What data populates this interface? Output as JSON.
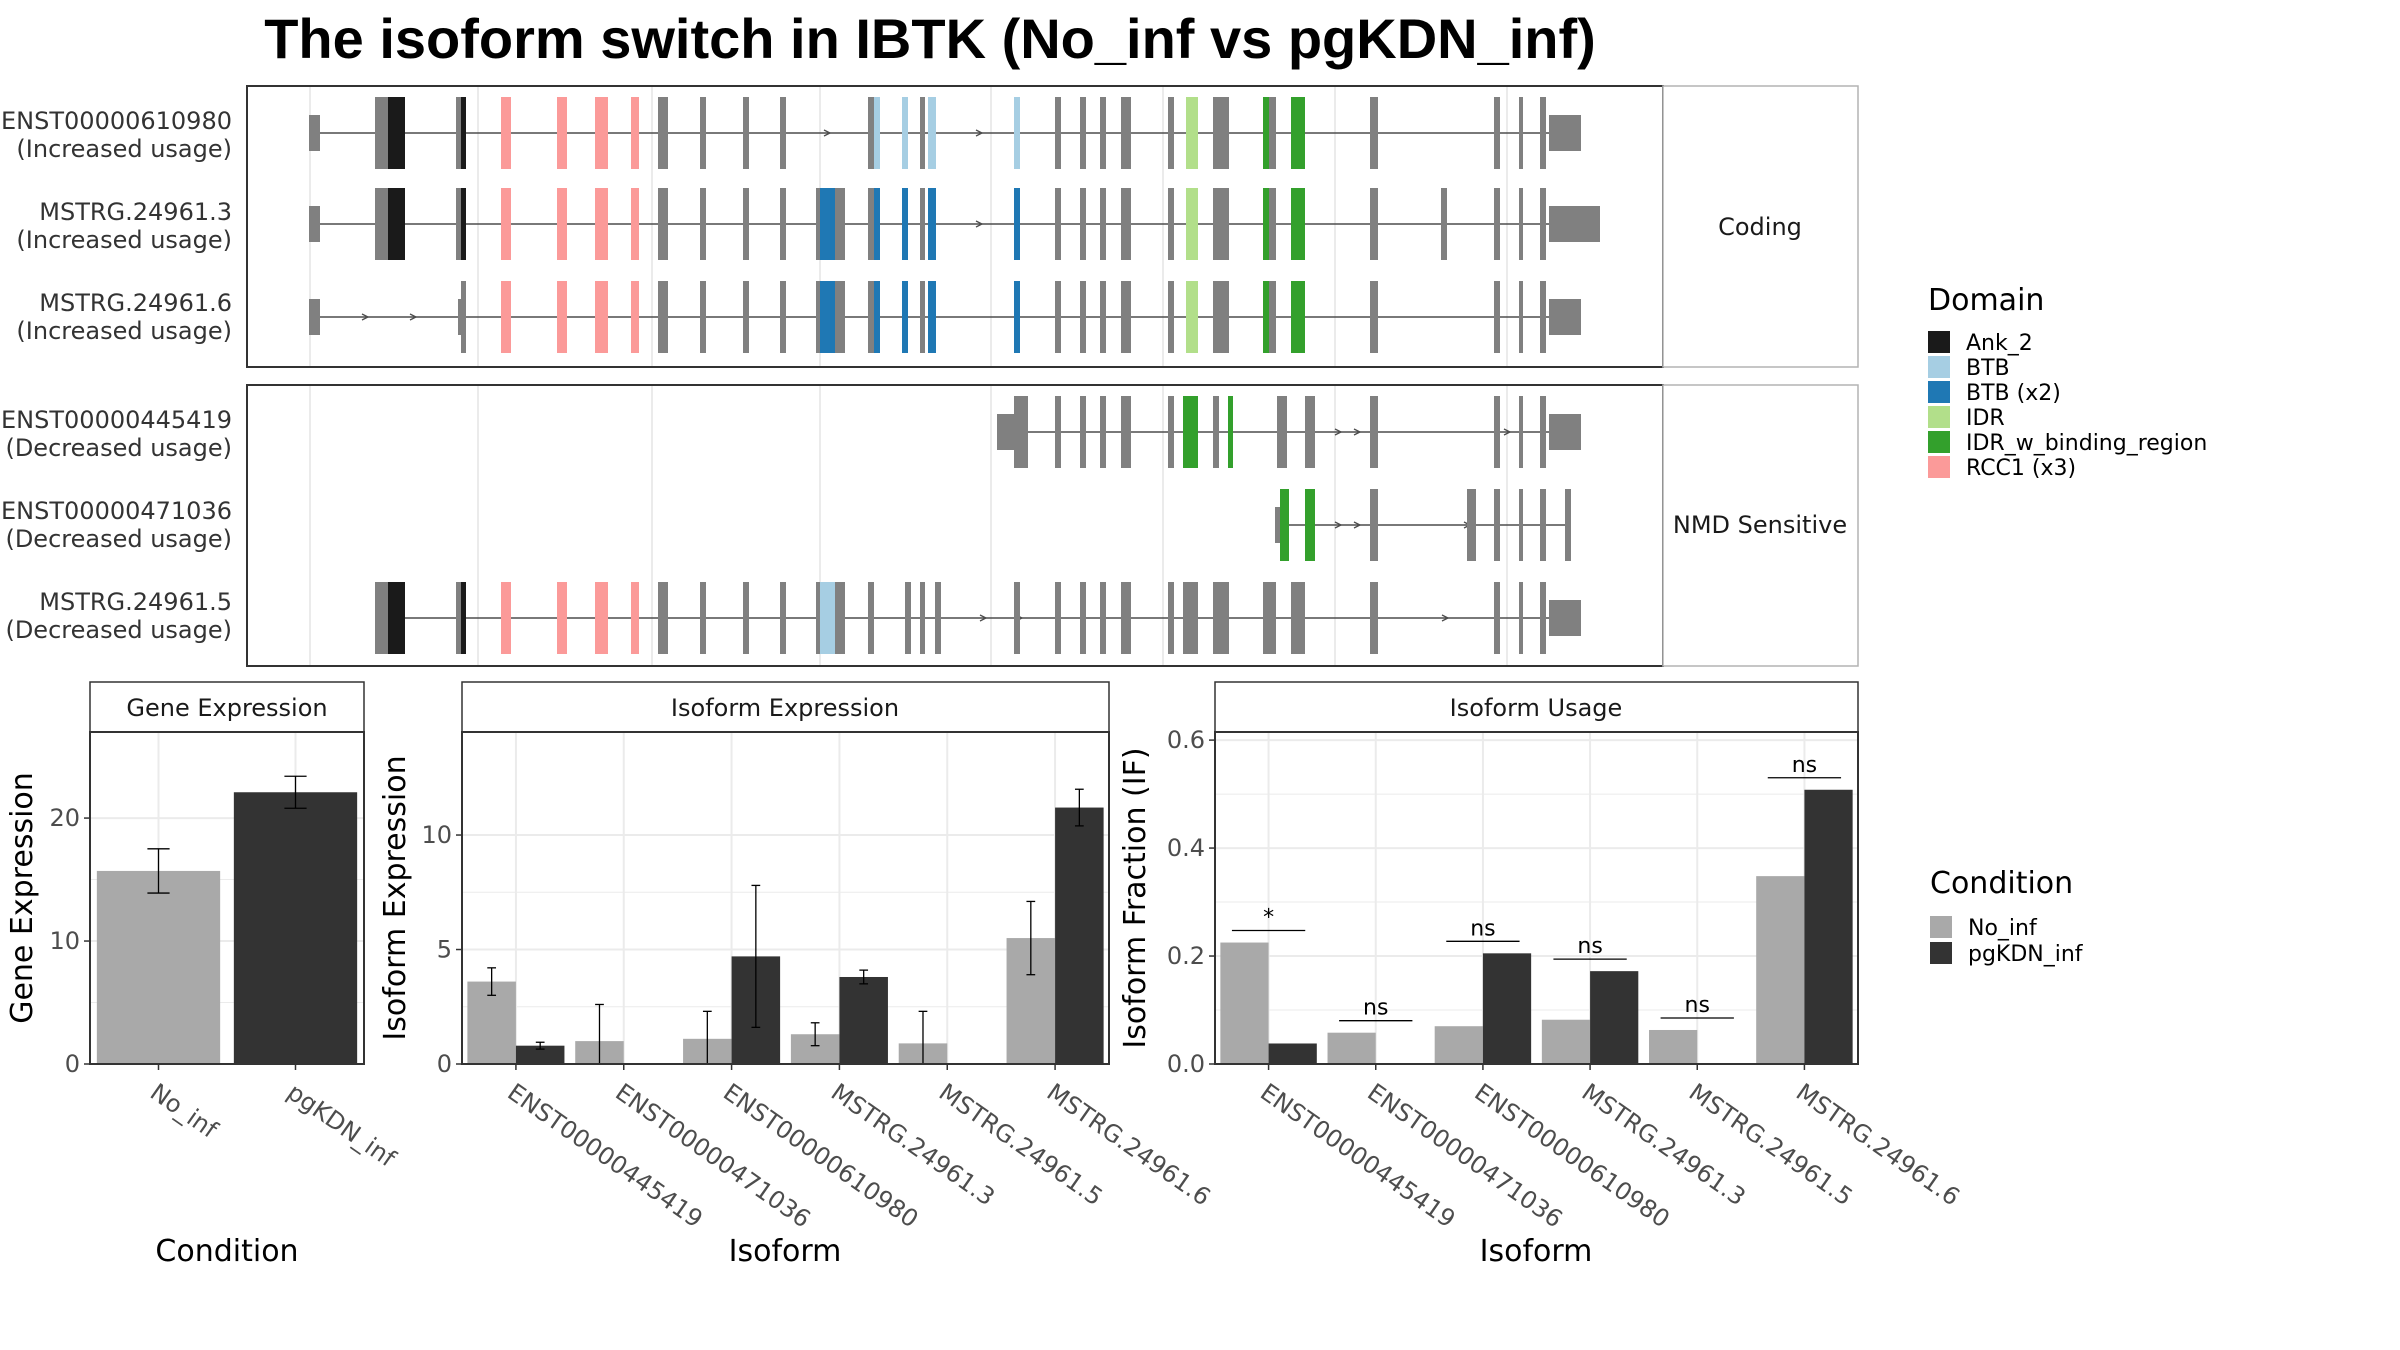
{
  "title": "The isoform switch in IBTK (No_inf vs pgKDN_inf)",
  "colors": {
    "exon": "#808080",
    "intron": "#4d4d4d",
    "no_inf": "#a9a9a9",
    "pgkdn_inf": "#333333",
    "grid": "#ebebeb",
    "panel_border": "#333333",
    "strip_border": "#b3b3b3"
  },
  "domain_legend": {
    "title": "Domain",
    "items": [
      {
        "label": "Ank_2",
        "color": "#1a1a1a"
      },
      {
        "label": "BTB",
        "color": "#a6cee3"
      },
      {
        "label": "BTB (x2)",
        "color": "#1f78b4"
      },
      {
        "label": "IDR",
        "color": "#b2df8a"
      },
      {
        "label": "IDR_w_binding_region",
        "color": "#33a02c"
      },
      {
        "label": "RCC1 (x3)",
        "color": "#fb9a99"
      }
    ]
  },
  "condition_legend": {
    "title": "Condition",
    "items": [
      {
        "label": "No_inf",
        "color": "#a9a9a9"
      },
      {
        "label": "pgKDN_inf",
        "color": "#333333"
      }
    ]
  },
  "structure": {
    "panels": [
      {
        "label": "Coding",
        "isoforms": [
          {
            "name": "ENST00000610980",
            "note": "(Increased usage)"
          },
          {
            "name": "MSTRG.24961.3",
            "note": "(Increased usage)"
          },
          {
            "name": "MSTRG.24961.6",
            "note": "(Increased usage)"
          }
        ]
      },
      {
        "label": "NMD Sensitive",
        "isoforms": [
          {
            "name": "ENST00000445419",
            "note": "(Decreased usage)"
          },
          {
            "name": "ENST00000471036",
            "note": "(Decreased usage)"
          },
          {
            "name": "MSTRG.24961.5",
            "note": "(Decreased usage)"
          }
        ]
      }
    ]
  },
  "chart_data": [
    {
      "type": "bar",
      "title": "Gene Expression",
      "xlabel": "Condition",
      "ylabel": "Gene Expression",
      "categories": [
        "No_inf",
        "pgKDN_inf"
      ],
      "values": [
        15.7,
        22.1
      ],
      "error": [
        1.8,
        1.3
      ],
      "ylim": [
        0,
        27
      ],
      "yticks": [
        0,
        10,
        20
      ]
    },
    {
      "type": "bar",
      "title": "Isoform Expression",
      "xlabel": "Isoform",
      "ylabel": "Isoform Expression",
      "categories": [
        "ENST00000445419",
        "ENST00000471036",
        "ENST00000610980",
        "MSTRG.24961.3",
        "MSTRG.24961.5",
        "MSTRG.24961.6"
      ],
      "ylim": [
        0,
        14.5
      ],
      "yticks": [
        0,
        5,
        10
      ],
      "series": [
        {
          "name": "No_inf",
          "values": [
            3.6,
            1.0,
            1.1,
            1.3,
            0.9,
            5.5
          ],
          "error": [
            0.6,
            1.6,
            1.2,
            0.5,
            1.4,
            1.6
          ]
        },
        {
          "name": "pgKDN_inf",
          "values": [
            0.8,
            0.0,
            4.7,
            3.8,
            0.0,
            11.2
          ],
          "error": [
            0.15,
            0.0,
            3.1,
            0.3,
            0.0,
            0.8
          ]
        }
      ]
    },
    {
      "type": "bar",
      "title": "Isoform Usage",
      "xlabel": "Isoform",
      "ylabel": "Isoform Fraction (IF)",
      "categories": [
        "ENST00000445419",
        "ENST00000471036",
        "ENST00000610980",
        "MSTRG.24961.3",
        "MSTRG.24961.5",
        "MSTRG.24961.6"
      ],
      "ylim": [
        0,
        0.615
      ],
      "yticks": [
        0.0,
        0.2,
        0.4,
        0.6
      ],
      "ytick_labels": [
        "0.0",
        "0.2",
        "0.4",
        "0.6"
      ],
      "series": [
        {
          "name": "No_inf",
          "values": [
            0.225,
            0.058,
            0.07,
            0.082,
            0.063,
            0.348
          ]
        },
        {
          "name": "pgKDN_inf",
          "values": [
            0.038,
            0.0,
            0.205,
            0.172,
            0.0,
            0.508
          ]
        }
      ],
      "significance": [
        "*",
        "ns",
        "ns",
        "ns",
        "ns",
        "ns"
      ]
    }
  ]
}
